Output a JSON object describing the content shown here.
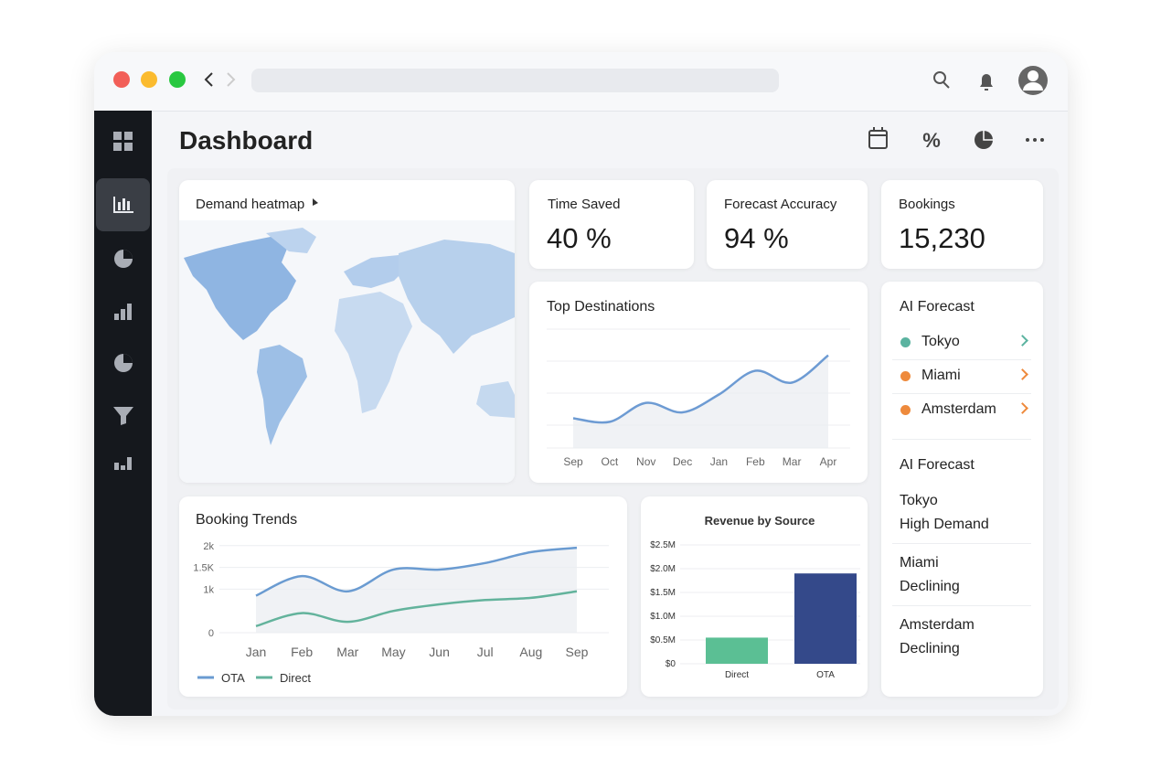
{
  "header": {
    "title": "Dashboard"
  },
  "heatmap": {
    "title": "Demand heatmap"
  },
  "kpis": [
    {
      "label": "Time Saved",
      "value": "40 %"
    },
    {
      "label": "Forecast Accuracy",
      "value": "94 %"
    },
    {
      "label": "Bookings",
      "value": "15,230"
    }
  ],
  "top_destinations": {
    "type": "line",
    "title": "Top Destinations",
    "categories": [
      "Sep",
      "Oct",
      "Nov",
      "Dec",
      "Jan",
      "Feb",
      "Mar",
      "Apr"
    ],
    "values": [
      25,
      22,
      38,
      30,
      45,
      65,
      55,
      78
    ],
    "color": "#6d9bd3",
    "ylim": [
      0,
      100
    ],
    "grid": true
  },
  "booking_trends": {
    "type": "line",
    "title": "Booking Trends",
    "categories": [
      "Jan",
      "Feb",
      "Mar",
      "May",
      "Jun",
      "Jul",
      "Aug",
      "Sep"
    ],
    "series": [
      {
        "name": "OTA",
        "color": "#6a9bd1",
        "values": [
          850,
          1300,
          950,
          1450,
          1450,
          1600,
          1850,
          1950
        ]
      },
      {
        "name": "Direct",
        "color": "#63b39c",
        "values": [
          150,
          450,
          250,
          500,
          650,
          750,
          800,
          950
        ]
      }
    ],
    "ylim": [
      0,
      2100
    ],
    "yticks": [
      0,
      {
        "value": 1000,
        "label": "1k"
      },
      {
        "value": 1500,
        "label": "1.5K"
      },
      {
        "value": 2000,
        "label": "2k"
      }
    ],
    "grid": true
  },
  "revenue": {
    "type": "bar",
    "title": "Revenue by Source",
    "categories": [
      "Direct",
      "OTA"
    ],
    "values": [
      550000,
      1900000
    ],
    "colors": [
      "#5bbf94",
      "#34498a"
    ],
    "ylim": [
      0,
      2500000
    ],
    "yticks": [
      {
        "value": 0,
        "label": "$0"
      },
      {
        "value": 500000,
        "label": "$0.5M"
      },
      {
        "value": 1000000,
        "label": "$1.0M"
      },
      {
        "value": 1500000,
        "label": "$1.5M"
      },
      {
        "value": 2000000,
        "label": "$2.0M"
      },
      {
        "value": 2500000,
        "label": "$2.5M"
      }
    ],
    "grid": true
  },
  "ai_forecast": {
    "title": "AI Forecast",
    "items": [
      {
        "city": "Tokyo",
        "color": "#5bb3a0"
      },
      {
        "city": "Miami",
        "color": "#ee8a3c"
      },
      {
        "city": "Amsterdam",
        "color": "#ee8a3c"
      }
    ]
  },
  "ai_forecast_detail": {
    "title": "AI Forecast",
    "items": [
      {
        "city": "Tokyo",
        "status": "High Demand"
      },
      {
        "city": "Miami",
        "status": "Declining"
      },
      {
        "city": "Amsterdam",
        "status": "Declining"
      }
    ]
  }
}
